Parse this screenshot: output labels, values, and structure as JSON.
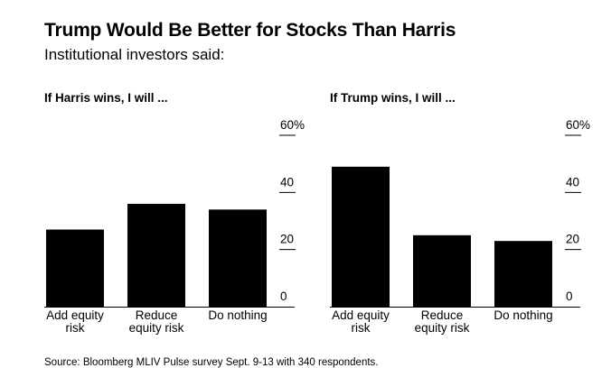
{
  "header": {
    "title": "Trump Would Be Better for Stocks Than Harris",
    "subtitle": "Institutional investors said:"
  },
  "source": "Source: Bloomberg MLIV Pulse survey Sept. 9-13 with 340 respondents.",
  "chart_data": [
    {
      "type": "bar",
      "title": "If Harris wins, I will ...",
      "categories": [
        [
          "Add equity",
          "risk"
        ],
        [
          "Reduce",
          "equity risk"
        ],
        [
          "Do nothing"
        ]
      ],
      "values": [
        27,
        36,
        34
      ],
      "ylim": [
        0,
        60
      ],
      "yticks": [
        "60%",
        "40",
        "20",
        "0"
      ],
      "ytick_values": [
        60,
        40,
        20,
        0
      ],
      "bar_color": "#000000",
      "grid": false
    },
    {
      "type": "bar",
      "title": "If Trump wins, I will ...",
      "categories": [
        [
          "Add equity",
          "risk"
        ],
        [
          "Reduce",
          "equity risk"
        ],
        [
          "Do nothing"
        ]
      ],
      "values": [
        49,
        25,
        23
      ],
      "ylim": [
        0,
        60
      ],
      "yticks": [
        "60%",
        "40",
        "20",
        "0"
      ],
      "ytick_values": [
        60,
        40,
        20,
        0
      ],
      "bar_color": "#000000",
      "grid": false
    }
  ]
}
